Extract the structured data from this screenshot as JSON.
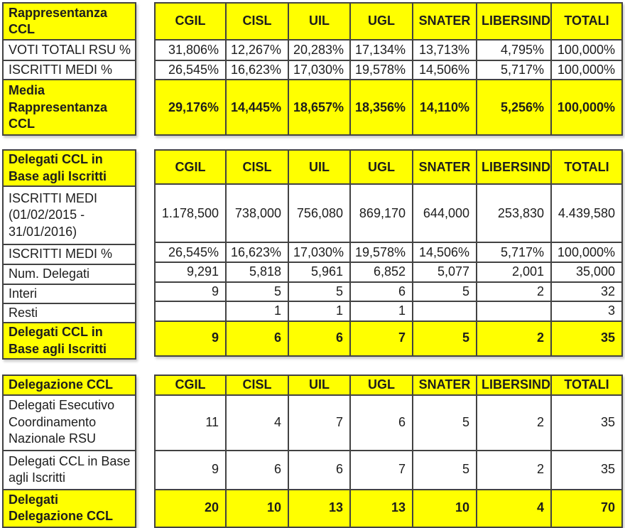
{
  "document": {
    "colors": {
      "highlight": "#FFFF00",
      "text": "#1d1d1d",
      "border": "#424242",
      "background": "#ffffff"
    },
    "columns": [
      "CGIL",
      "CISL",
      "UIL",
      "UGL",
      "SNATER",
      "LIBERSIND",
      "TOTALI"
    ],
    "tables": [
      {
        "title": "Rappresentanza CCL",
        "rows": [
          {
            "label": "VOTI TOTALI RSU %",
            "highlight": false,
            "values": [
              "31,806%",
              "12,267%",
              "20,283%",
              "17,134%",
              "13,713%",
              "4,795%",
              "100,000%"
            ]
          },
          {
            "label": "ISCRITTI MEDI %",
            "highlight": false,
            "values": [
              "26,545%",
              "16,623%",
              "17,030%",
              "19,578%",
              "14,506%",
              "5,717%",
              "100,000%"
            ]
          },
          {
            "label": "Media Rappresentanza CCL",
            "highlight": true,
            "values": [
              "29,176%",
              "14,445%",
              "18,657%",
              "18,356%",
              "14,110%",
              "5,256%",
              "100,000%"
            ]
          }
        ]
      },
      {
        "title": "Delegati CCL in Base agli Iscritti",
        "rows": [
          {
            "label": "ISCRITTI MEDI (01/02/2015 - 31/01/2016)",
            "highlight": false,
            "values": [
              "1.178,500",
              "738,000",
              "756,080",
              "869,170",
              "644,000",
              "253,830",
              "4.439,580"
            ]
          },
          {
            "label": "ISCRITTI MEDI %",
            "highlight": false,
            "values": [
              "26,545%",
              "16,623%",
              "17,030%",
              "19,578%",
              "14,506%",
              "5,717%",
              "100,000%"
            ]
          },
          {
            "label": "Num. Delegati",
            "highlight": false,
            "values": [
              "9,291",
              "5,818",
              "5,961",
              "6,852",
              "5,077",
              "2,001",
              "35,000"
            ]
          },
          {
            "label": "Interi",
            "highlight": false,
            "values": [
              "9",
              "5",
              "5",
              "6",
              "5",
              "2",
              "32"
            ]
          },
          {
            "label": "Resti",
            "highlight": false,
            "values": [
              "",
              "1",
              "1",
              "1",
              "",
              "",
              "3"
            ]
          },
          {
            "label": "Delegati CCL in Base agli Iscritti",
            "highlight": true,
            "values": [
              "9",
              "6",
              "6",
              "7",
              "5",
              "2",
              "35"
            ]
          }
        ]
      },
      {
        "title": "Delegazione CCL",
        "rows": [
          {
            "label": "Delegati Esecutivo Coordinamento Nazionale RSU",
            "highlight": false,
            "values": [
              "11",
              "4",
              "7",
              "6",
              "5",
              "2",
              "35"
            ]
          },
          {
            "label": "Delegati CCL in Base agli Iscritti",
            "highlight": false,
            "values": [
              "9",
              "6",
              "6",
              "7",
              "5",
              "2",
              "35"
            ]
          },
          {
            "label": "Delegati Delegazione CCL",
            "highlight": true,
            "values": [
              "20",
              "10",
              "13",
              "13",
              "10",
              "4",
              "70"
            ]
          }
        ]
      }
    ]
  }
}
